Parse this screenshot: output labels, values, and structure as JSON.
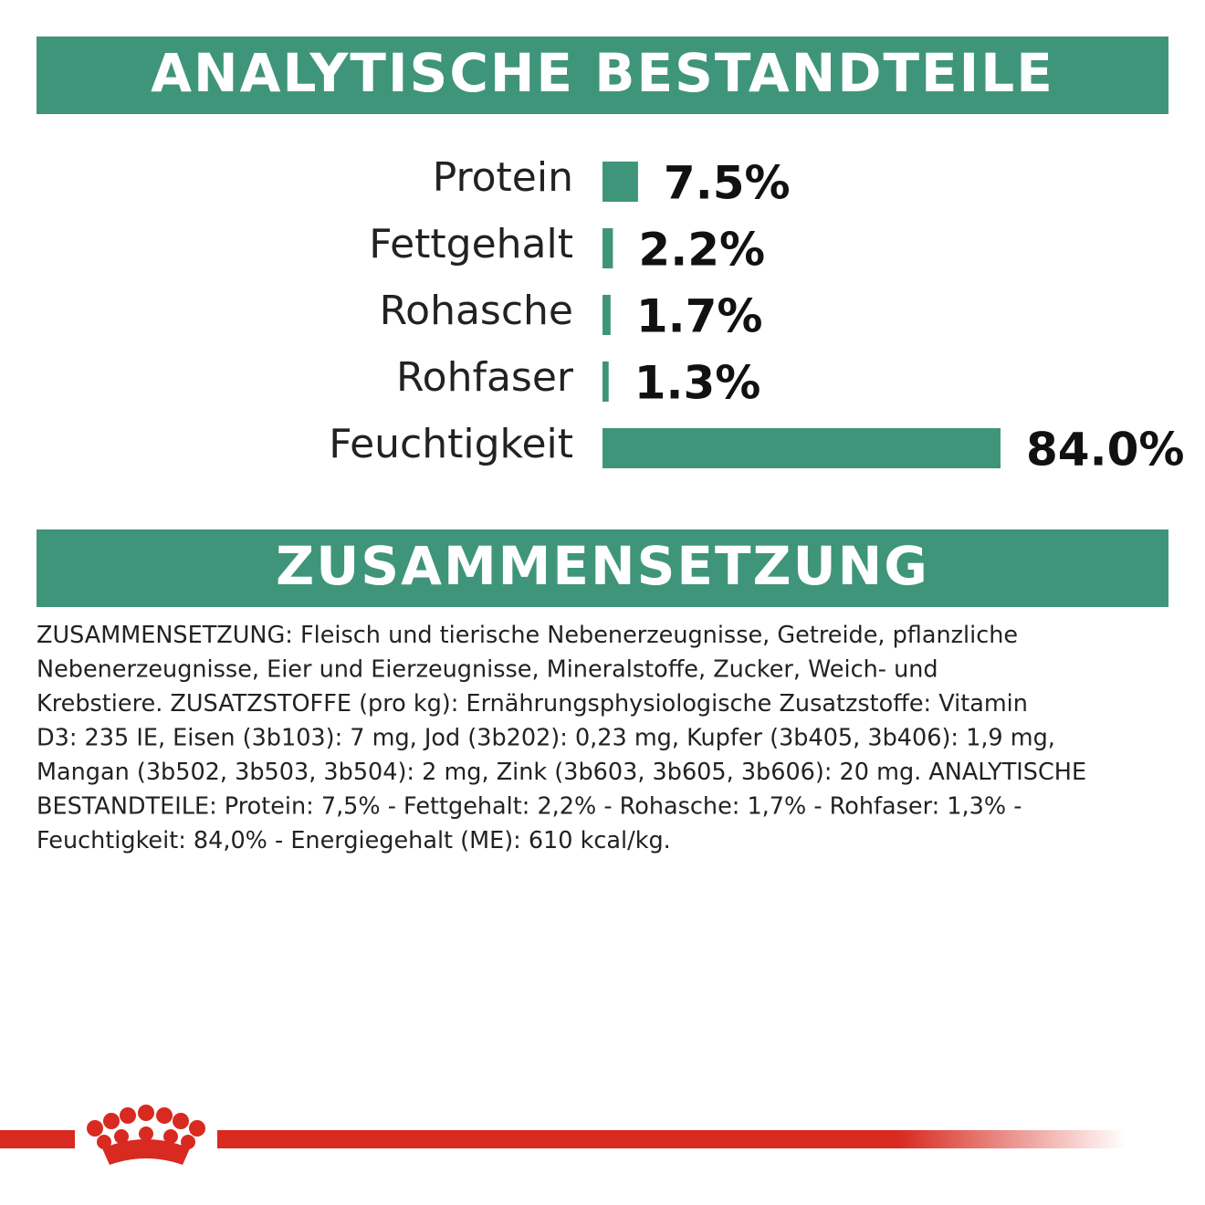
{
  "chart_data": {
    "type": "hbar",
    "title": "ANALYTISCHE BESTANDTEILE",
    "categories": [
      "Protein",
      "Fettgehalt",
      "Rohasche",
      "Rohfaser",
      "Feuchtigkeit"
    ],
    "values": [
      7.5,
      2.2,
      1.7,
      1.3,
      84.0
    ],
    "value_labels": [
      "7.5%",
      "2.2%",
      "1.7%",
      "1.3%",
      "84.0%"
    ],
    "color": "#3f957a"
  },
  "composition": {
    "title": "ZUSAMMENSETZUNG",
    "lines": [
      "ZUSAMMENSETZUNG: Fleisch und tierische Nebenerzeugnisse, Getreide, pflanzliche",
      "Nebenerzeugnisse, Eier und Eierzeugnisse, Mineralstoffe, Zucker, Weich- und",
      "Krebstiere. ZUSATZSTOFFE (pro kg): Ernährungsphysiologische Zusatzstoffe: Vitamin",
      "D3: 235 IE, Eisen (3b103): 7 mg, Jod (3b202): 0,23 mg, Kupfer (3b405, 3b406): 1,9 mg,",
      "Mangan (3b502, 3b503, 3b504): 2 mg, Zink (3b603, 3b605, 3b606): 20 mg. ANALYTISCHE",
      "BESTANDTEILE: Protein: 7,5% - Fettgehalt: 2,2% - Rohasche: 1,7% - Rohfaser: 1,3% -",
      "Feuchtigkeit: 84,0% - Energiegehalt (ME): 610 kcal/kg."
    ]
  }
}
